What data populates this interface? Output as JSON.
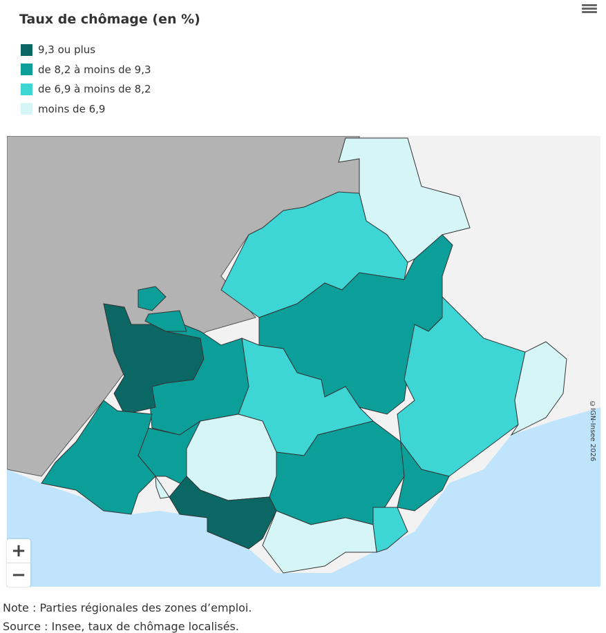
{
  "title": "Taux de chômage (en %)",
  "menu_icon": "hamburger-menu-icon",
  "legend": [
    {
      "label": "9,3 ou plus",
      "color": "#0b6764"
    },
    {
      "label": "de 8,2 à moins de 9,3",
      "color": "#0c9e99"
    },
    {
      "label": "de 6,9 à moins de 8,2",
      "color": "#3dd6d5"
    },
    {
      "label": "moins de 6,9",
      "color": "#d5f5f7"
    }
  ],
  "map_colors": {
    "outside_region": "#b3b3b3",
    "foreign": "#f2f2f2",
    "sea": "#bfe4fc"
  },
  "zoom": {
    "in": "+",
    "out": "−"
  },
  "copyright": "©IGN-Insee 2026",
  "note": "Note : Parties régionales des zones d’emploi.",
  "source": "Source : Insee, taux de chômage localisés."
}
